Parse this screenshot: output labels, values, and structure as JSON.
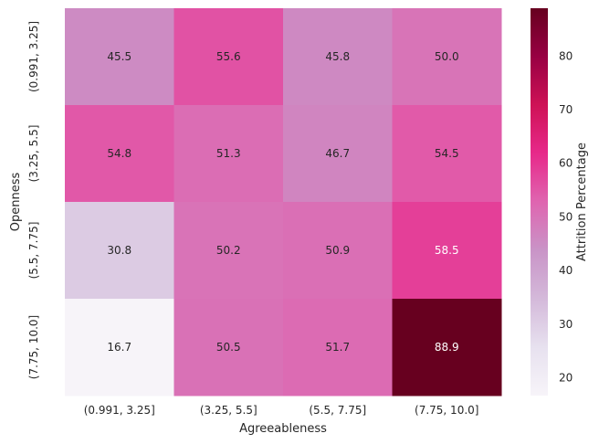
{
  "chart_data": {
    "type": "heatmap",
    "title": "",
    "xlabel": "Agreeableness",
    "ylabel": "Openness",
    "x_categories": [
      "(0.991, 3.25]",
      "(3.25, 5.5]",
      "(5.5, 7.75]",
      "(7.75, 10.0]"
    ],
    "y_categories": [
      "(0.991, 3.25]",
      "(3.25, 5.5]",
      "(5.5, 7.75]",
      "(7.75, 10.0]"
    ],
    "values": [
      [
        45.5,
        55.6,
        45.8,
        50.0
      ],
      [
        54.8,
        51.3,
        46.7,
        54.5
      ],
      [
        30.8,
        50.2,
        50.9,
        58.5
      ],
      [
        16.7,
        50.5,
        51.7,
        88.9
      ]
    ],
    "colorbar": {
      "label": "Attrition Percentage",
      "range": [
        16.7,
        88.9
      ],
      "ticks": [
        20,
        30,
        40,
        50,
        60,
        70,
        80
      ]
    },
    "colormap": [
      "#f7f4f9",
      "#e7e1ef",
      "#d4b9da",
      "#c994c7",
      "#df65b0",
      "#e7298a",
      "#ce1256",
      "#980043",
      "#67001f"
    ]
  }
}
